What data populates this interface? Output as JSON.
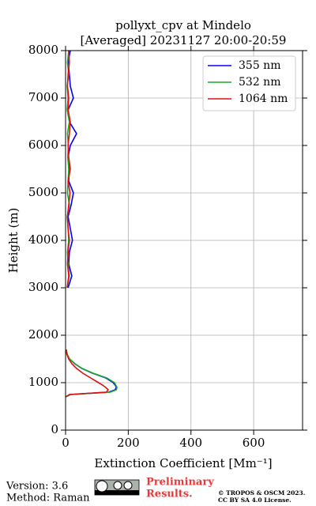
{
  "chart_data": {
    "type": "line",
    "title": "pollyxt_cpv at Mindelo",
    "subtitle": "[Averaged] 20231127 20:00-20:59",
    "x_label": "Extinction Coefficient [Mm⁻¹]",
    "y_label": "Height (m)",
    "y": [
      700,
      750,
      800,
      850,
      900,
      950,
      1000,
      1100,
      1200,
      1300,
      1400,
      1500,
      1600,
      1700,
      2000,
      3000,
      3250,
      3500,
      3750,
      4000,
      4250,
      4500,
      4750,
      5000,
      5250,
      5500,
      5750,
      6000,
      6250,
      6500,
      6750,
      7000,
      7250,
      7500,
      7750,
      8000
    ],
    "series": [
      {
        "name": "355 nm",
        "color": "#0000ff",
        "values": [
          0,
          15,
          138,
          158,
          162,
          158,
          152,
          128,
          86,
          52,
          29,
          12,
          5,
          2,
          null,
          8,
          20,
          10,
          12,
          22,
          15,
          8,
          18,
          25,
          10,
          12,
          8,
          15,
          35,
          12,
          8,
          25,
          15,
          12,
          8,
          15
        ]
      },
      {
        "name": "532 nm",
        "color": "#1aaa2a",
        "values": [
          0,
          17,
          143,
          162,
          164,
          160,
          156,
          131,
          88,
          53,
          30,
          13,
          5,
          2,
          null,
          5,
          12,
          8,
          6,
          10,
          8,
          5,
          12,
          6,
          8,
          10,
          7,
          9,
          6,
          12,
          5,
          8,
          5,
          10,
          6,
          10
        ]
      },
      {
        "name": "1064 nm",
        "color": "#e01010",
        "values": [
          0,
          12,
          130,
          136,
          128,
          118,
          105,
          80,
          55,
          35,
          20,
          10,
          4,
          1,
          null,
          5,
          10,
          6,
          8,
          12,
          8,
          6,
          10,
          14,
          8,
          15,
          10,
          8,
          12,
          15,
          8,
          10,
          6,
          8,
          12,
          10
        ]
      }
    ],
    "xlim": [
      0,
      756
    ],
    "xticks": [
      0,
      200,
      400,
      600
    ],
    "ylim": [
      0,
      8000
    ],
    "yticks": [
      0,
      1000,
      2000,
      3000,
      4000,
      5000,
      6000,
      7000,
      8000
    ],
    "grid": true,
    "legend": "upper right"
  },
  "footer": {
    "version": "Version: 3.6",
    "method": "Method: Raman",
    "preliminary": [
      "Preliminary",
      "Results."
    ],
    "copyright": [
      "© TROPOS & OSCM 2023.",
      "CC BY SA 4.0 License."
    ]
  }
}
